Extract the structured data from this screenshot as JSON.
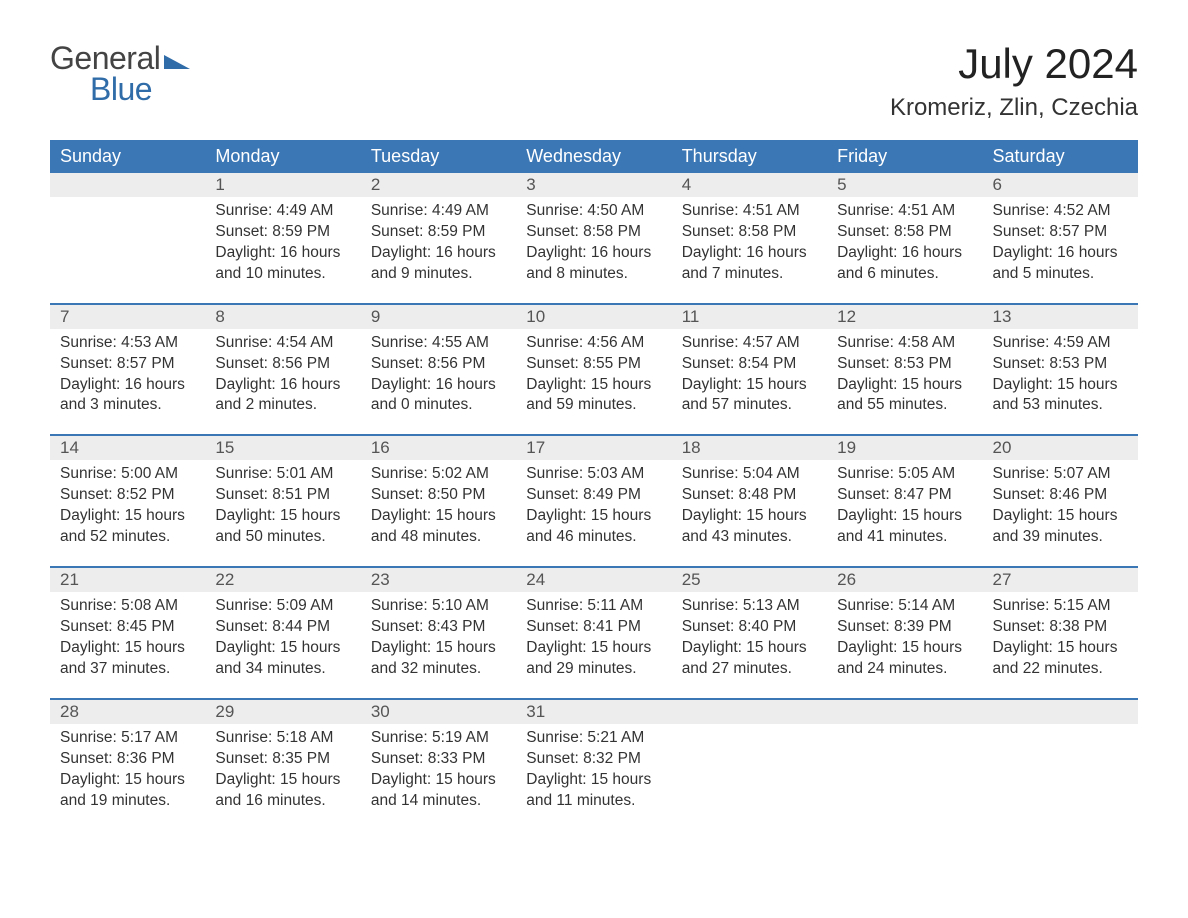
{
  "logo": {
    "text_general": "General",
    "text_blue": "Blue"
  },
  "title": "July 2024",
  "location": "Kromeriz, Zlin, Czechia",
  "colors": {
    "header_bg": "#3b77b5",
    "header_text": "#ffffff",
    "daynum_bg": "#ededed",
    "week_border": "#3b77b5",
    "logo_blue": "#2f6ca8",
    "body_text": "#333333",
    "background": "#ffffff"
  },
  "day_headers": [
    "Sunday",
    "Monday",
    "Tuesday",
    "Wednesday",
    "Thursday",
    "Friday",
    "Saturday"
  ],
  "weeks": [
    [
      null,
      {
        "n": "1",
        "sr": "Sunrise: 4:49 AM",
        "ss": "Sunset: 8:59 PM",
        "d1": "Daylight: 16 hours",
        "d2": "and 10 minutes."
      },
      {
        "n": "2",
        "sr": "Sunrise: 4:49 AM",
        "ss": "Sunset: 8:59 PM",
        "d1": "Daylight: 16 hours",
        "d2": "and 9 minutes."
      },
      {
        "n": "3",
        "sr": "Sunrise: 4:50 AM",
        "ss": "Sunset: 8:58 PM",
        "d1": "Daylight: 16 hours",
        "d2": "and 8 minutes."
      },
      {
        "n": "4",
        "sr": "Sunrise: 4:51 AM",
        "ss": "Sunset: 8:58 PM",
        "d1": "Daylight: 16 hours",
        "d2": "and 7 minutes."
      },
      {
        "n": "5",
        "sr": "Sunrise: 4:51 AM",
        "ss": "Sunset: 8:58 PM",
        "d1": "Daylight: 16 hours",
        "d2": "and 6 minutes."
      },
      {
        "n": "6",
        "sr": "Sunrise: 4:52 AM",
        "ss": "Sunset: 8:57 PM",
        "d1": "Daylight: 16 hours",
        "d2": "and 5 minutes."
      }
    ],
    [
      {
        "n": "7",
        "sr": "Sunrise: 4:53 AM",
        "ss": "Sunset: 8:57 PM",
        "d1": "Daylight: 16 hours",
        "d2": "and 3 minutes."
      },
      {
        "n": "8",
        "sr": "Sunrise: 4:54 AM",
        "ss": "Sunset: 8:56 PM",
        "d1": "Daylight: 16 hours",
        "d2": "and 2 minutes."
      },
      {
        "n": "9",
        "sr": "Sunrise: 4:55 AM",
        "ss": "Sunset: 8:56 PM",
        "d1": "Daylight: 16 hours",
        "d2": "and 0 minutes."
      },
      {
        "n": "10",
        "sr": "Sunrise: 4:56 AM",
        "ss": "Sunset: 8:55 PM",
        "d1": "Daylight: 15 hours",
        "d2": "and 59 minutes."
      },
      {
        "n": "11",
        "sr": "Sunrise: 4:57 AM",
        "ss": "Sunset: 8:54 PM",
        "d1": "Daylight: 15 hours",
        "d2": "and 57 minutes."
      },
      {
        "n": "12",
        "sr": "Sunrise: 4:58 AM",
        "ss": "Sunset: 8:53 PM",
        "d1": "Daylight: 15 hours",
        "d2": "and 55 minutes."
      },
      {
        "n": "13",
        "sr": "Sunrise: 4:59 AM",
        "ss": "Sunset: 8:53 PM",
        "d1": "Daylight: 15 hours",
        "d2": "and 53 minutes."
      }
    ],
    [
      {
        "n": "14",
        "sr": "Sunrise: 5:00 AM",
        "ss": "Sunset: 8:52 PM",
        "d1": "Daylight: 15 hours",
        "d2": "and 52 minutes."
      },
      {
        "n": "15",
        "sr": "Sunrise: 5:01 AM",
        "ss": "Sunset: 8:51 PM",
        "d1": "Daylight: 15 hours",
        "d2": "and 50 minutes."
      },
      {
        "n": "16",
        "sr": "Sunrise: 5:02 AM",
        "ss": "Sunset: 8:50 PM",
        "d1": "Daylight: 15 hours",
        "d2": "and 48 minutes."
      },
      {
        "n": "17",
        "sr": "Sunrise: 5:03 AM",
        "ss": "Sunset: 8:49 PM",
        "d1": "Daylight: 15 hours",
        "d2": "and 46 minutes."
      },
      {
        "n": "18",
        "sr": "Sunrise: 5:04 AM",
        "ss": "Sunset: 8:48 PM",
        "d1": "Daylight: 15 hours",
        "d2": "and 43 minutes."
      },
      {
        "n": "19",
        "sr": "Sunrise: 5:05 AM",
        "ss": "Sunset: 8:47 PM",
        "d1": "Daylight: 15 hours",
        "d2": "and 41 minutes."
      },
      {
        "n": "20",
        "sr": "Sunrise: 5:07 AM",
        "ss": "Sunset: 8:46 PM",
        "d1": "Daylight: 15 hours",
        "d2": "and 39 minutes."
      }
    ],
    [
      {
        "n": "21",
        "sr": "Sunrise: 5:08 AM",
        "ss": "Sunset: 8:45 PM",
        "d1": "Daylight: 15 hours",
        "d2": "and 37 minutes."
      },
      {
        "n": "22",
        "sr": "Sunrise: 5:09 AM",
        "ss": "Sunset: 8:44 PM",
        "d1": "Daylight: 15 hours",
        "d2": "and 34 minutes."
      },
      {
        "n": "23",
        "sr": "Sunrise: 5:10 AM",
        "ss": "Sunset: 8:43 PM",
        "d1": "Daylight: 15 hours",
        "d2": "and 32 minutes."
      },
      {
        "n": "24",
        "sr": "Sunrise: 5:11 AM",
        "ss": "Sunset: 8:41 PM",
        "d1": "Daylight: 15 hours",
        "d2": "and 29 minutes."
      },
      {
        "n": "25",
        "sr": "Sunrise: 5:13 AM",
        "ss": "Sunset: 8:40 PM",
        "d1": "Daylight: 15 hours",
        "d2": "and 27 minutes."
      },
      {
        "n": "26",
        "sr": "Sunrise: 5:14 AM",
        "ss": "Sunset: 8:39 PM",
        "d1": "Daylight: 15 hours",
        "d2": "and 24 minutes."
      },
      {
        "n": "27",
        "sr": "Sunrise: 5:15 AM",
        "ss": "Sunset: 8:38 PM",
        "d1": "Daylight: 15 hours",
        "d2": "and 22 minutes."
      }
    ],
    [
      {
        "n": "28",
        "sr": "Sunrise: 5:17 AM",
        "ss": "Sunset: 8:36 PM",
        "d1": "Daylight: 15 hours",
        "d2": "and 19 minutes."
      },
      {
        "n": "29",
        "sr": "Sunrise: 5:18 AM",
        "ss": "Sunset: 8:35 PM",
        "d1": "Daylight: 15 hours",
        "d2": "and 16 minutes."
      },
      {
        "n": "30",
        "sr": "Sunrise: 5:19 AM",
        "ss": "Sunset: 8:33 PM",
        "d1": "Daylight: 15 hours",
        "d2": "and 14 minutes."
      },
      {
        "n": "31",
        "sr": "Sunrise: 5:21 AM",
        "ss": "Sunset: 8:32 PM",
        "d1": "Daylight: 15 hours",
        "d2": "and 11 minutes."
      },
      null,
      null,
      null
    ]
  ]
}
